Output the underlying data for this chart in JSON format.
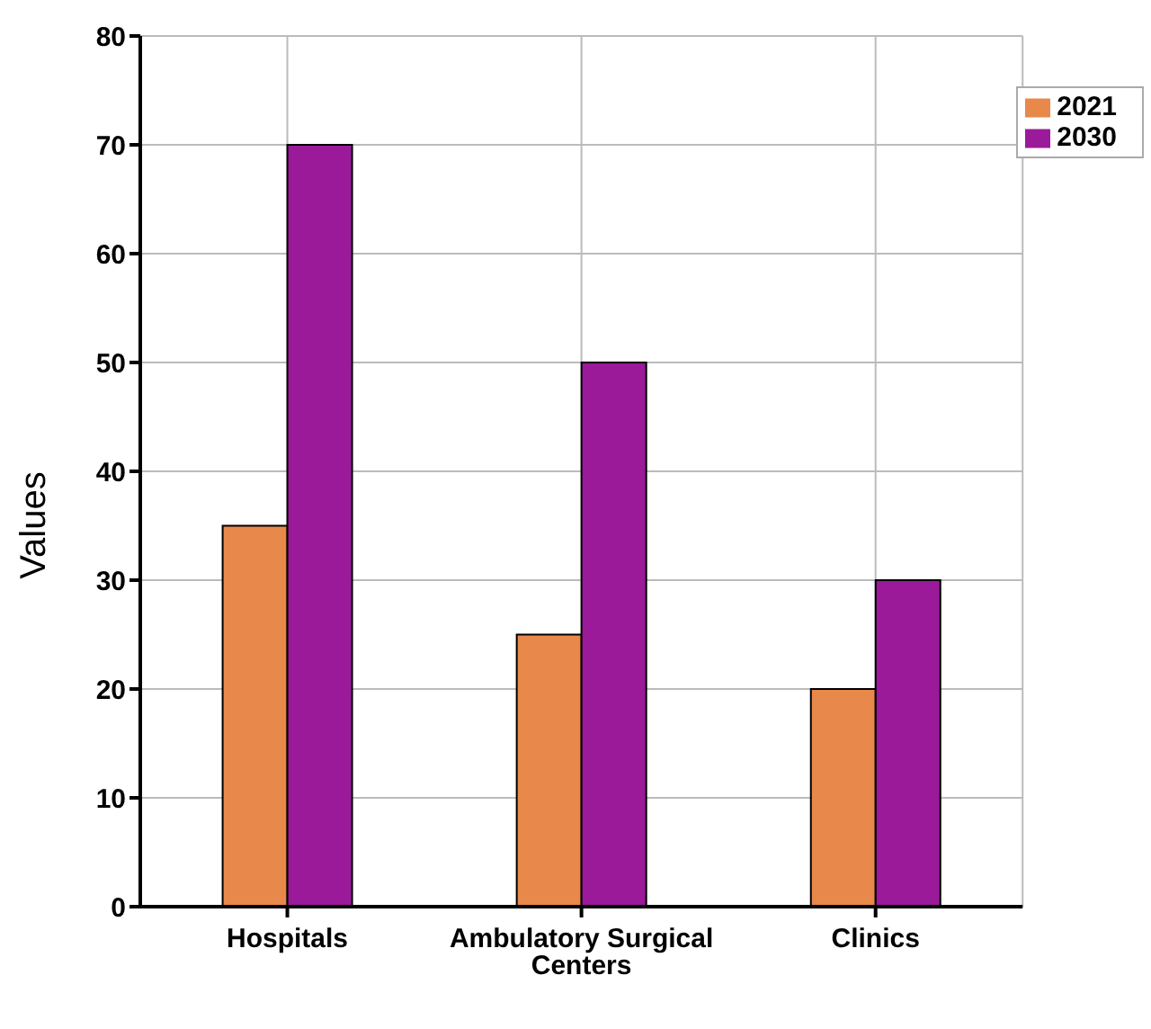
{
  "chart_data": {
    "type": "bar",
    "ylabel": "Values",
    "categories": [
      "Hospitals",
      "Ambulatory Surgical Centers",
      "Clinics"
    ],
    "series": [
      {
        "name": "2021",
        "color": "#e8884a",
        "values": [
          35,
          25,
          20
        ]
      },
      {
        "name": "2030",
        "color": "#9a1a9a",
        "values": [
          70,
          50,
          30
        ]
      }
    ],
    "ylim": [
      0,
      80
    ],
    "yticks": [
      0,
      10,
      20,
      30,
      40,
      50,
      60,
      70,
      80
    ],
    "grid": true,
    "legend": "top right"
  }
}
